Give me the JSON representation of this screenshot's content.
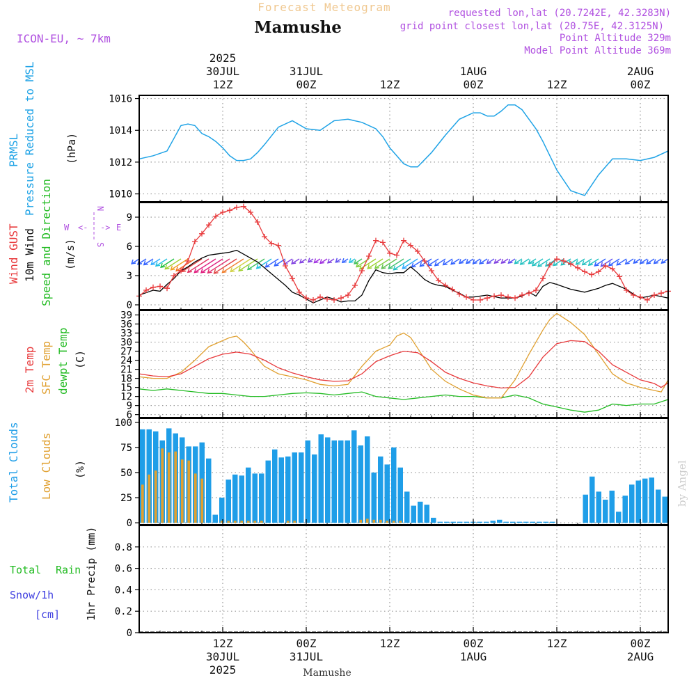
{
  "header": {
    "subtitle": "Forecast Meteogram",
    "station": "Mamushe",
    "model": "ICON-EU, ~ 7km",
    "requested": "requested lon,lat (20.7242E, 42.3283N)",
    "grid": "grid point closest lon,lat (20.75E, 42.3125N)",
    "point_alt": "Point Altitude 329m",
    "model_alt": "Model Point Altitude 369m"
  },
  "colors": {
    "pressure": "#1fa3e6",
    "gust": "#e8393b",
    "wind": "#000000",
    "temp": "#e8393b",
    "sfc": "#e0a030",
    "dewpt": "#22bb22",
    "total_clouds": "#1f9ee8",
    "low_clouds": "#e0a030",
    "purple": "#b050e0",
    "green_label": "#22bb22",
    "snow_label": "#4040e0"
  },
  "time_axis": {
    "top": [
      {
        "hour": 12,
        "lines": [
          "2025",
          "30JUL",
          "12Z"
        ]
      },
      {
        "hour": 24,
        "lines": [
          "31JUL",
          "00Z"
        ]
      },
      {
        "hour": 36,
        "lines": [
          "12Z"
        ]
      },
      {
        "hour": 48,
        "lines": [
          "1AUG",
          "00Z"
        ]
      },
      {
        "hour": 60,
        "lines": [
          "12Z"
        ]
      },
      {
        "hour": 72,
        "lines": [
          "2AUG",
          "00Z"
        ]
      }
    ],
    "bottom": [
      {
        "hour": 12,
        "lines": [
          "12Z",
          "30JUL",
          "2025"
        ]
      },
      {
        "hour": 24,
        "lines": [
          "00Z",
          "31JUL"
        ]
      },
      {
        "hour": 36,
        "lines": [
          "12Z"
        ]
      },
      {
        "hour": 48,
        "lines": [
          "00Z",
          "1AUG"
        ]
      },
      {
        "hour": 60,
        "lines": [
          "12Z"
        ]
      },
      {
        "hour": 72,
        "lines": [
          "00Z",
          "2AUG"
        ]
      }
    ],
    "footer": "Mamushe"
  },
  "panels": {
    "pressure": {
      "label_top": "PRMSL",
      "label_bottom": "Pressure Reduced to MSL",
      "unit": "(hPa)"
    },
    "wind": {
      "gust": "Wind GUST",
      "wind": "10m Wind",
      "speed": "Speed and Direction",
      "unit": "(m/s)",
      "compass_n": "N",
      "compass_s": "S",
      "compass_w": "W",
      "compass_e": "E"
    },
    "temp": {
      "t2m": "2m Temp",
      "sfc": "SFC Temp",
      "dew": "dewpt Temp",
      "unit": "(C)"
    },
    "clouds": {
      "total": "Total Clouds",
      "low": "Low Clouds",
      "unit": "(%)"
    },
    "precip": {
      "total": "Total",
      "rain": "Rain",
      "snow": "Snow/1h",
      "snow_unit": "[cm]",
      "unit": "1hr Precip (mm)"
    }
  },
  "watermark": "by Angel",
  "chart_data": [
    {
      "type": "line",
      "name": "PRMSL",
      "ylim": [
        1009.5,
        1016.2
      ],
      "yticks": [
        1010,
        1012,
        1014,
        1016
      ],
      "x": [
        0,
        2,
        4,
        5,
        6,
        7,
        8,
        9,
        10,
        11,
        12,
        13,
        14,
        15,
        16,
        17,
        18,
        20,
        22,
        24,
        26,
        28,
        30,
        32,
        34,
        35,
        36,
        37,
        38,
        39,
        40,
        42,
        44,
        46,
        48,
        49,
        50,
        51,
        52,
        53,
        54,
        55,
        56,
        57,
        58,
        60,
        62,
        64,
        66,
        68,
        70,
        72,
        74,
        76
      ],
      "y": [
        1012.2,
        1012.4,
        1012.7,
        1013.5,
        1014.3,
        1014.4,
        1014.3,
        1013.8,
        1013.6,
        1013.3,
        1012.9,
        1012.4,
        1012.1,
        1012.1,
        1012.2,
        1012.6,
        1013.1,
        1014.2,
        1014.6,
        1014.1,
        1014.0,
        1014.6,
        1014.7,
        1014.5,
        1014.1,
        1013.6,
        1012.9,
        1012.4,
        1011.9,
        1011.7,
        1011.7,
        1012.6,
        1013.7,
        1014.7,
        1015.1,
        1015.1,
        1014.9,
        1014.9,
        1015.2,
        1015.6,
        1015.6,
        1015.3,
        1014.7,
        1014.1,
        1013.3,
        1011.5,
        1010.2,
        1009.9,
        1011.2,
        1012.2,
        1012.2,
        1012.1,
        1012.3,
        1012.7
      ]
    },
    {
      "type": "line",
      "name": "Wind",
      "ylim": [
        -0.5,
        10.5
      ],
      "yticks": [
        0,
        3,
        6,
        9
      ],
      "gust_x": [
        0,
        1,
        2,
        3,
        4,
        5,
        6,
        7,
        8,
        9,
        10,
        11,
        12,
        13,
        14,
        15,
        16,
        17,
        18,
        19,
        20,
        21,
        22,
        23,
        24,
        25,
        26,
        27,
        28,
        29,
        30,
        31,
        32,
        33,
        34,
        35,
        36,
        37,
        38,
        39,
        40,
        41,
        42,
        43,
        44,
        45,
        46,
        47,
        48,
        49,
        50,
        51,
        52,
        53,
        54,
        55,
        56,
        57,
        58,
        59,
        60,
        61,
        62,
        63,
        64,
        65,
        66,
        67,
        68,
        69,
        70,
        71,
        72,
        73,
        74,
        75,
        76
      ],
      "gust_y": [
        0.9,
        1.5,
        1.8,
        1.9,
        1.7,
        3.0,
        3.5,
        4.5,
        6.5,
        7.3,
        8.2,
        9.1,
        9.5,
        9.7,
        10.0,
        10.1,
        9.5,
        8.5,
        7.0,
        6.3,
        6.1,
        4.0,
        2.7,
        1.3,
        0.7,
        0.5,
        0.8,
        0.6,
        0.5,
        0.7,
        1.0,
        2.0,
        3.5,
        5.0,
        6.6,
        6.4,
        5.3,
        5.1,
        6.6,
        6.1,
        5.5,
        4.5,
        3.5,
        2.5,
        2.0,
        1.6,
        1.1,
        0.8,
        0.5,
        0.5,
        0.7,
        0.9,
        1.0,
        0.8,
        0.7,
        1.0,
        1.2,
        1.5,
        2.7,
        4.1,
        4.7,
        4.5,
        4.2,
        3.8,
        3.4,
        3.1,
        3.4,
        4.0,
        3.7,
        2.9,
        1.5,
        1.0,
        0.8,
        0.5,
        1.0,
        1.2,
        1.4
      ],
      "wind_x": [
        0,
        2,
        3,
        4,
        5,
        6,
        7,
        8,
        9,
        10,
        11,
        12,
        13,
        14,
        15,
        16,
        17,
        18,
        19,
        20,
        21,
        22,
        23,
        24,
        25,
        26,
        27,
        28,
        29,
        30,
        31,
        32,
        33,
        34,
        35,
        36,
        37,
        38,
        39,
        40,
        41,
        42,
        43,
        44,
        45,
        46,
        47,
        48,
        50,
        52,
        54,
        55,
        56,
        57,
        58,
        59,
        60,
        62,
        64,
        66,
        67,
        68,
        70,
        71,
        72,
        74,
        76
      ],
      "wind_y": [
        1.0,
        1.5,
        1.4,
        2.1,
        2.7,
        3.5,
        3.9,
        4.4,
        4.8,
        5.1,
        5.2,
        5.3,
        5.4,
        5.6,
        5.2,
        4.8,
        4.4,
        3.8,
        3.2,
        2.6,
        2.0,
        1.3,
        1.0,
        0.6,
        0.2,
        0.5,
        0.8,
        0.6,
        0.3,
        0.4,
        0.4,
        1.0,
        2.5,
        3.6,
        3.3,
        3.2,
        3.3,
        3.3,
        3.9,
        3.3,
        2.6,
        2.2,
        2.0,
        1.9,
        1.5,
        1.2,
        0.8,
        0.8,
        1.0,
        0.7,
        0.7,
        0.9,
        1.3,
        0.9,
        1.9,
        2.3,
        2.1,
        1.6,
        1.3,
        1.7,
        2.0,
        2.2,
        1.6,
        1.1,
        0.7,
        1.0,
        0.7
      ],
      "arrows": [
        {
          "h": 0,
          "c": "#3060ff"
        },
        {
          "h": 1,
          "c": "#3060ff"
        },
        {
          "h": 2,
          "c": "#3060ff"
        },
        {
          "h": 3,
          "c": "#2aa8ff"
        },
        {
          "h": 4,
          "c": "#20c0e0"
        },
        {
          "h": 5,
          "c": "#20c040"
        },
        {
          "h": 6,
          "c": "#a0d030"
        },
        {
          "h": 7,
          "c": "#f0a020"
        },
        {
          "h": 8,
          "c": "#f07020"
        },
        {
          "h": 9,
          "c": "#e04040"
        },
        {
          "h": 10,
          "c": "#e03060"
        },
        {
          "h": 11,
          "c": "#e02080"
        },
        {
          "h": 12,
          "c": "#e02080"
        },
        {
          "h": 13,
          "c": "#e03070"
        },
        {
          "h": 14,
          "c": "#e04040"
        },
        {
          "h": 15,
          "c": "#f08030"
        },
        {
          "h": 16,
          "c": "#d0d040"
        },
        {
          "h": 17,
          "c": "#a0d030"
        },
        {
          "h": 18,
          "c": "#40c060"
        },
        {
          "h": 19,
          "c": "#20c0e0"
        },
        {
          "h": 20,
          "c": "#3060ff"
        },
        {
          "h": 21,
          "c": "#3060ff"
        },
        {
          "h": 22,
          "c": "#8040e0"
        },
        {
          "h": 23,
          "c": "#8040e0"
        },
        {
          "h": 24,
          "c": "#8040e0"
        },
        {
          "h": 25,
          "c": "#8040e0"
        },
        {
          "h": 26,
          "c": "#a030e0"
        },
        {
          "h": 27,
          "c": "#a030e0"
        },
        {
          "h": 28,
          "c": "#8040e0"
        },
        {
          "h": 29,
          "c": "#6050f0"
        },
        {
          "h": 30,
          "c": "#3060ff"
        },
        {
          "h": 31,
          "c": "#20c0e0"
        },
        {
          "h": 32,
          "c": "#40c060"
        },
        {
          "h": 33,
          "c": "#80d040"
        },
        {
          "h": 34,
          "c": "#a0d030"
        },
        {
          "h": 35,
          "c": "#a0d030"
        },
        {
          "h": 36,
          "c": "#80d040"
        },
        {
          "h": 37,
          "c": "#60c050"
        },
        {
          "h": 38,
          "c": "#40c070"
        },
        {
          "h": 39,
          "c": "#20c0c0"
        },
        {
          "h": 40,
          "c": "#2aa8ff"
        },
        {
          "h": 41,
          "c": "#3060ff"
        },
        {
          "h": 42,
          "c": "#3060ff"
        },
        {
          "h": 43,
          "c": "#3060ff"
        },
        {
          "h": 44,
          "c": "#3060ff"
        },
        {
          "h": 45,
          "c": "#3060ff"
        },
        {
          "h": 46,
          "c": "#3060ff"
        },
        {
          "h": 47,
          "c": "#3060ff"
        },
        {
          "h": 48,
          "c": "#3060ff"
        },
        {
          "h": 49,
          "c": "#3060ff"
        },
        {
          "h": 50,
          "c": "#3060ff"
        },
        {
          "h": 51,
          "c": "#6050f0"
        },
        {
          "h": 52,
          "c": "#8040e0"
        },
        {
          "h": 53,
          "c": "#8040e0"
        },
        {
          "h": 54,
          "c": "#6050f0"
        },
        {
          "h": 55,
          "c": "#20c0c0"
        },
        {
          "h": 56,
          "c": "#20c0c0"
        },
        {
          "h": 57,
          "c": "#20c0c0"
        },
        {
          "h": 58,
          "c": "#20c0c0"
        },
        {
          "h": 59,
          "c": "#20c0c0"
        },
        {
          "h": 60,
          "c": "#20c0c0"
        },
        {
          "h": 61,
          "c": "#20c0c0"
        },
        {
          "h": 62,
          "c": "#20c0c0"
        },
        {
          "h": 63,
          "c": "#20c0c0"
        },
        {
          "h": 64,
          "c": "#20c0c0"
        },
        {
          "h": 65,
          "c": "#20c0c0"
        },
        {
          "h": 66,
          "c": "#20c0c0"
        },
        {
          "h": 67,
          "c": "#3060ff"
        },
        {
          "h": 68,
          "c": "#6050f0"
        },
        {
          "h": 69,
          "c": "#3060ff"
        },
        {
          "h": 70,
          "c": "#3060ff"
        },
        {
          "h": 71,
          "c": "#3060ff"
        },
        {
          "h": 72,
          "c": "#3060ff"
        },
        {
          "h": 73,
          "c": "#3060ff"
        },
        {
          "h": 74,
          "c": "#3060ff"
        },
        {
          "h": 75,
          "c": "#3060ff"
        },
        {
          "h": 76,
          "c": "#3060ff"
        }
      ]
    },
    {
      "type": "line",
      "name": "Temperature",
      "ylim": [
        5,
        40.5
      ],
      "yticks": [
        6,
        9,
        12,
        15,
        18,
        21,
        24,
        27,
        30,
        33,
        36,
        39
      ],
      "t2m_x": [
        0,
        2,
        4,
        6,
        8,
        10,
        12,
        14,
        16,
        18,
        20,
        22,
        24,
        26,
        28,
        30,
        32,
        34,
        36,
        38,
        40,
        42,
        44,
        46,
        48,
        50,
        52,
        54,
        56,
        58,
        60,
        62,
        64,
        66,
        68,
        70,
        72,
        74,
        75,
        76
      ],
      "t2m_y": [
        19.5,
        18.8,
        18.5,
        19.5,
        22,
        24.5,
        26,
        26.7,
        26,
        24,
        21.5,
        19.8,
        18.5,
        17.5,
        17,
        17.2,
        19.5,
        23.5,
        25.5,
        27,
        26.5,
        23.5,
        20,
        18,
        16.5,
        15.5,
        14.8,
        15,
        18.5,
        25,
        29.5,
        30.5,
        30.2,
        27,
        22.5,
        20,
        17.5,
        16.3,
        15,
        16.5
      ],
      "sfc_x": [
        0,
        2,
        4,
        6,
        8,
        10,
        12,
        13,
        14,
        15,
        16,
        17,
        18,
        20,
        22,
        24,
        26,
        28,
        30,
        31,
        32,
        34,
        35,
        36,
        37,
        38,
        39,
        40,
        42,
        44,
        46,
        48,
        50,
        52,
        54,
        56,
        58,
        59,
        60,
        61,
        62,
        63,
        64,
        66,
        68,
        70,
        72,
        74,
        75,
        76
      ],
      "sfc_y": [
        18.5,
        18,
        18,
        20,
        24,
        28.5,
        30.5,
        31.5,
        32,
        30,
        27.5,
        24.5,
        22,
        19.5,
        18.5,
        17.5,
        16,
        15.5,
        16,
        19,
        22,
        27,
        28,
        29,
        32,
        33,
        31.5,
        28,
        21,
        17,
        14.5,
        12.5,
        11.5,
        11.5,
        17.5,
        26,
        34,
        37.5,
        39.5,
        38,
        36.5,
        34.5,
        32.5,
        26,
        19.5,
        16.5,
        15,
        14,
        13.5,
        17.5
      ],
      "dew_x": [
        0,
        2,
        4,
        6,
        8,
        10,
        12,
        14,
        16,
        18,
        20,
        22,
        24,
        26,
        28,
        30,
        32,
        34,
        36,
        38,
        40,
        42,
        44,
        46,
        48,
        50,
        52,
        54,
        56,
        58,
        60,
        62,
        64,
        66,
        68,
        70,
        72,
        74,
        76
      ],
      "dew_y": [
        14.5,
        14,
        14.5,
        14,
        13.5,
        13,
        13,
        12.5,
        12,
        12,
        12.5,
        13,
        13.2,
        13,
        12.5,
        13,
        13.5,
        12,
        11.5,
        11,
        11.5,
        12,
        12.5,
        12,
        12,
        11.5,
        11.5,
        12.5,
        11.5,
        9.5,
        8.5,
        7.5,
        6.8,
        7.5,
        9.5,
        9,
        9.5,
        9.5,
        11
      ]
    },
    {
      "type": "bar",
      "name": "Clouds",
      "ylim": [
        -2,
        104
      ],
      "yticks": [
        0,
        25,
        50,
        75,
        100
      ],
      "total": [
        93,
        93,
        91,
        82,
        94,
        89,
        85,
        76,
        76,
        80,
        64,
        8,
        25,
        43,
        48,
        47,
        55,
        49,
        49,
        62,
        73,
        65,
        66,
        70,
        70,
        82,
        68,
        88,
        85,
        82,
        82,
        82,
        92,
        77,
        86,
        50,
        66,
        58,
        75,
        55,
        31,
        17,
        21,
        18,
        5,
        1,
        1,
        1,
        1,
        1,
        1,
        1,
        1,
        2,
        3,
        1,
        1,
        1,
        1,
        1,
        1,
        1,
        1,
        0,
        0,
        0,
        0,
        28,
        46,
        31,
        23,
        32,
        11,
        27,
        38,
        42,
        44,
        45,
        33,
        26
      ],
      "low": [
        38,
        48,
        52,
        74,
        70,
        71,
        63,
        62,
        49,
        44,
        0,
        0,
        2,
        2,
        2,
        2,
        2,
        2,
        2,
        0,
        0,
        0,
        2,
        2,
        0,
        0,
        0,
        0,
        0,
        0,
        0,
        0,
        0,
        3,
        4,
        3,
        3,
        2,
        2,
        2,
        0,
        0,
        0,
        0,
        0,
        0,
        0,
        0,
        0,
        0,
        0,
        0,
        0,
        0,
        0,
        0,
        0,
        0,
        0,
        0,
        0,
        0,
        0,
        0,
        0,
        0,
        0,
        0,
        0,
        0,
        0,
        0,
        0,
        0,
        0,
        0,
        0,
        0,
        0,
        0
      ]
    },
    {
      "type": "bar",
      "name": "Precipitation",
      "ylim": [
        0,
        1.0
      ],
      "yticks": [
        0,
        0.2,
        0.4,
        0.6,
        0.8
      ],
      "values": []
    }
  ]
}
